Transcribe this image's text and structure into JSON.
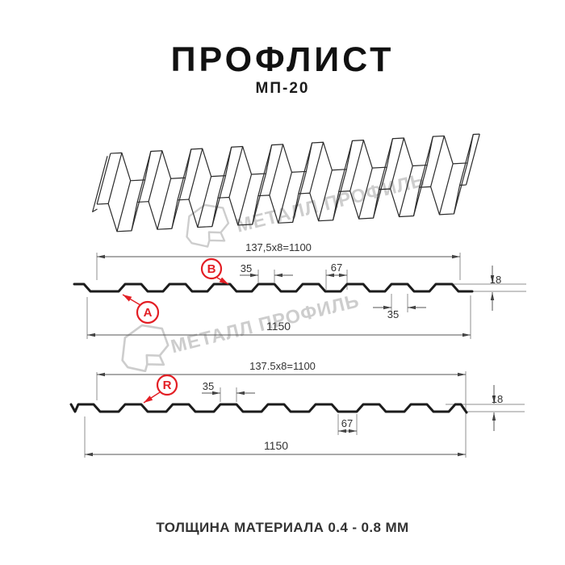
{
  "header": {
    "title": "ПРОФЛИСТ",
    "subtitle": "МП-20"
  },
  "watermark": {
    "text": "МЕТАЛЛ ПРОФИЛЬ"
  },
  "profile_top": {
    "dim_working_width": "137,5x8=1100",
    "dim_rib_top": "35",
    "dim_valley": "67",
    "dim_height": "18",
    "dim_rib_bottom": "35",
    "dim_total_width": "1150",
    "label_a": "A",
    "label_b": "B"
  },
  "profile_bottom": {
    "dim_working_width": "137.5x8=1100",
    "dim_rib_top": "35",
    "dim_valley": "67",
    "dim_height": "18",
    "dim_total_width": "1150",
    "label_r": "R"
  },
  "footer": {
    "thickness_note": "ТОЛЩИНА МАТЕРИАЛА 0.4 - 0.8 ММ"
  },
  "colors": {
    "accent_red": "#e31e24",
    "line": "#1c1c1c",
    "dim": "#555555",
    "watermark": "#c7c7c7"
  }
}
